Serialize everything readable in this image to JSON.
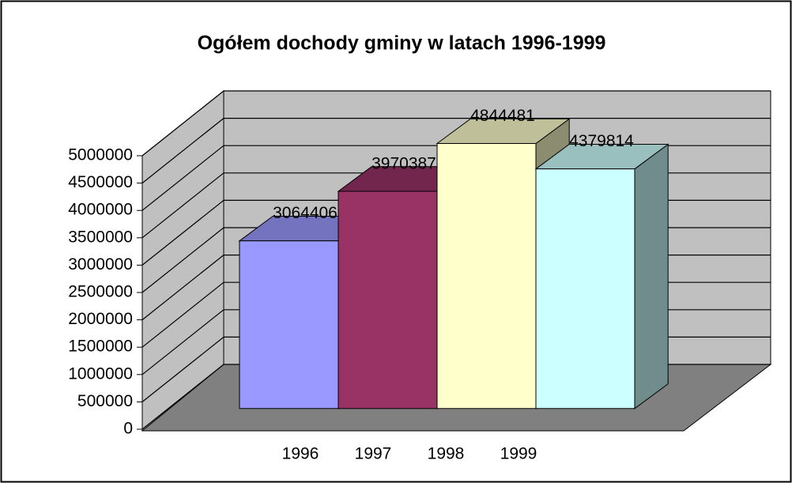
{
  "chart_data": {
    "type": "bar3d",
    "title": "Ogółem dochody gminy w latach 1996-1999",
    "categories": [
      "1996",
      "1997",
      "1998",
      "1999"
    ],
    "values": [
      3064406,
      3970387,
      4844481,
      4379814
    ],
    "colors": [
      "#9999ff",
      "#993366",
      "#ffffcc",
      "#ccffff"
    ],
    "ylim": [
      0,
      5000000
    ],
    "yticks": [
      0,
      500000,
      1000000,
      1500000,
      2000000,
      2500000,
      3000000,
      3500000,
      4000000,
      4500000,
      5000000
    ],
    "grid": true
  }
}
